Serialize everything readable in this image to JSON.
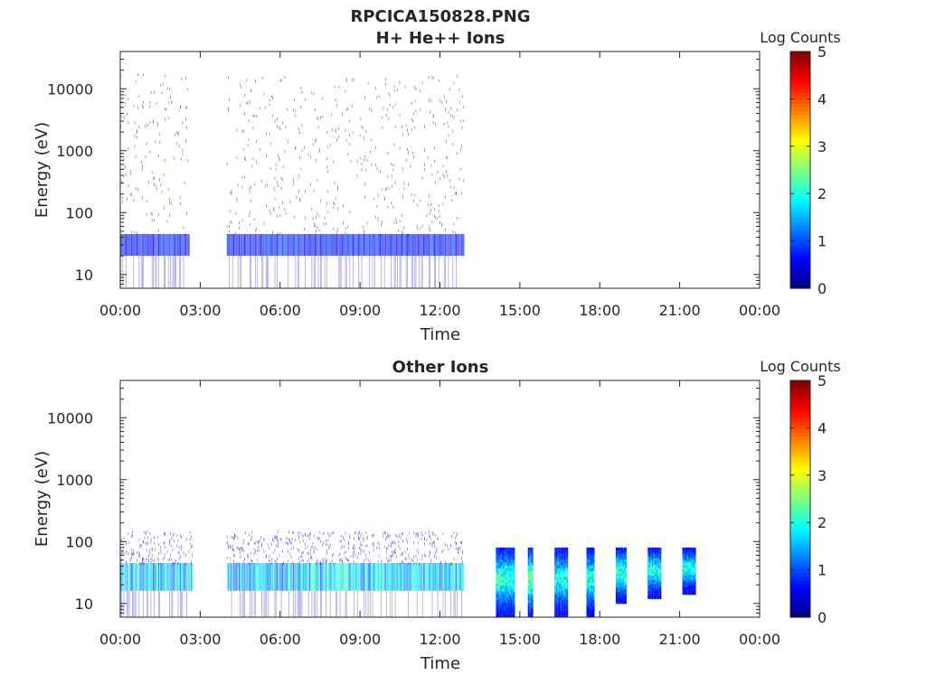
{
  "figure": {
    "main_title": "RPCICA150828.PNG",
    "colormap": [
      "#00007f",
      "#0000ff",
      "#007fff",
      "#00ffff",
      "#7fff7f",
      "#ffff00",
      "#ff7f00",
      "#ff0000",
      "#7f0000"
    ]
  },
  "chart_data": [
    {
      "type": "heatmap",
      "title": "H+ He++ Ions",
      "xlabel": "Time",
      "ylabel": "Energy (eV)",
      "x_ticks": [
        "00:00",
        "03:00",
        "06:00",
        "09:00",
        "12:00",
        "15:00",
        "18:00",
        "21:00",
        "00:00"
      ],
      "xlim_hours": [
        0,
        24
      ],
      "yscale": "log",
      "ylim": [
        6,
        40000
      ],
      "y_ticks": [
        10,
        100,
        1000,
        10000
      ],
      "y_tick_labels": [
        "10",
        "100",
        "1000",
        "10000"
      ],
      "colorbar": {
        "label": "Log Counts",
        "range": [
          0,
          5
        ],
        "ticks": [
          "0",
          "1",
          "2",
          "3",
          "4",
          "5"
        ]
      },
      "segments": [
        {
          "start_hour": 0.0,
          "end_hour": 2.6,
          "band_emin": 20,
          "band_emax": 45,
          "band_level": 0.8,
          "scatter_emax": 18000,
          "scatter_level": 0.4
        },
        {
          "start_hour": 4.0,
          "end_hour": 12.9,
          "band_emin": 20,
          "band_emax": 45,
          "band_level": 0.8,
          "scatter_emax": 18000,
          "scatter_level": 0.4
        }
      ]
    },
    {
      "type": "heatmap",
      "title": "Other Ions",
      "xlabel": "Time",
      "ylabel": "Energy (eV)",
      "x_ticks": [
        "00:00",
        "03:00",
        "06:00",
        "09:00",
        "12:00",
        "15:00",
        "18:00",
        "21:00",
        "00:00"
      ],
      "xlim_hours": [
        0,
        24
      ],
      "yscale": "log",
      "ylim": [
        6,
        40000
      ],
      "y_ticks": [
        10,
        100,
        1000,
        10000
      ],
      "y_tick_labels": [
        "10",
        "100",
        "1000",
        "10000"
      ],
      "colorbar": {
        "label": "Log Counts",
        "range": [
          0,
          5
        ],
        "ticks": [
          "0",
          "1",
          "2",
          "3",
          "4",
          "5"
        ]
      },
      "segments": [
        {
          "start_hour": 0.0,
          "end_hour": 2.7,
          "band_emin": 16,
          "band_emax": 45,
          "band_level": 1.8,
          "scatter_emax": 150,
          "scatter_level": 0.5
        },
        {
          "start_hour": 4.0,
          "end_hour": 12.9,
          "band_emin": 16,
          "band_emax": 45,
          "band_level": 1.8,
          "scatter_emax": 150,
          "scatter_level": 0.5
        }
      ],
      "bursts": [
        {
          "start_hour": 14.1,
          "end_hour": 14.8,
          "emin": 6,
          "emax": 80,
          "peak_level": 2.2
        },
        {
          "start_hour": 15.3,
          "end_hour": 15.5,
          "emin": 6,
          "emax": 80,
          "peak_level": 2.4
        },
        {
          "start_hour": 16.3,
          "end_hour": 16.8,
          "emin": 6,
          "emax": 80,
          "peak_level": 2.0
        },
        {
          "start_hour": 17.5,
          "end_hour": 17.8,
          "emin": 6,
          "emax": 80,
          "peak_level": 2.1
        },
        {
          "start_hour": 18.6,
          "end_hour": 19.0,
          "emin": 10,
          "emax": 80,
          "peak_level": 2.2
        },
        {
          "start_hour": 19.8,
          "end_hour": 20.3,
          "emin": 12,
          "emax": 80,
          "peak_level": 2.0
        },
        {
          "start_hour": 21.1,
          "end_hour": 21.6,
          "emin": 14,
          "emax": 80,
          "peak_level": 2.0
        }
      ]
    }
  ]
}
